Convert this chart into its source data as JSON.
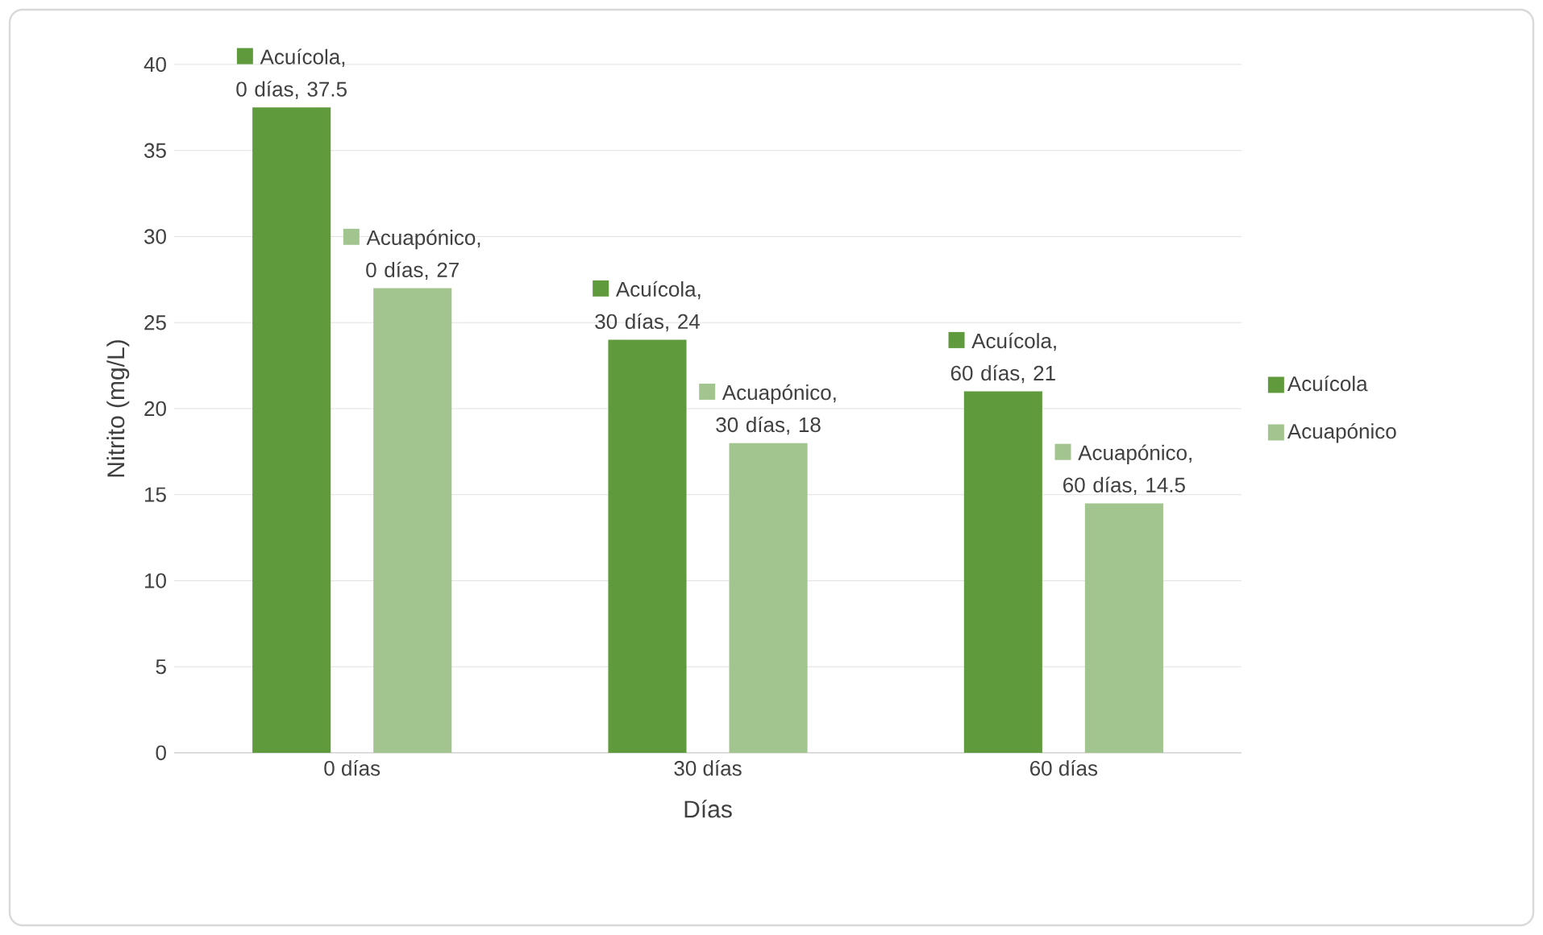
{
  "chart_data": {
    "type": "bar",
    "xlabel": "Días",
    "ylabel": "Nitrito (mg/L)",
    "categories": [
      "0 días",
      "30 días",
      "60 días"
    ],
    "series": [
      {
        "name": "Acuícola",
        "color": "#5f9a3c",
        "values": [
          37.5,
          24,
          21
        ],
        "value_labels": [
          "Acuícola, 0 días, 37.5",
          "Acuícola, 30 días, 24",
          "Acuícola, 60 días, 21"
        ]
      },
      {
        "name": "Acuapónico",
        "color": "#a2c48f",
        "values": [
          27,
          18,
          14.5
        ],
        "value_labels": [
          "Acuapónico, 0 días, 27",
          "Acuapónico, 30 días, 18",
          "Acuapónico, 60 días, 14.5"
        ]
      }
    ],
    "ylim": [
      0,
      40
    ],
    "yticks": [
      0,
      5,
      10,
      15,
      20,
      25,
      30,
      35,
      40
    ],
    "grid": "y",
    "legend": "right"
  }
}
